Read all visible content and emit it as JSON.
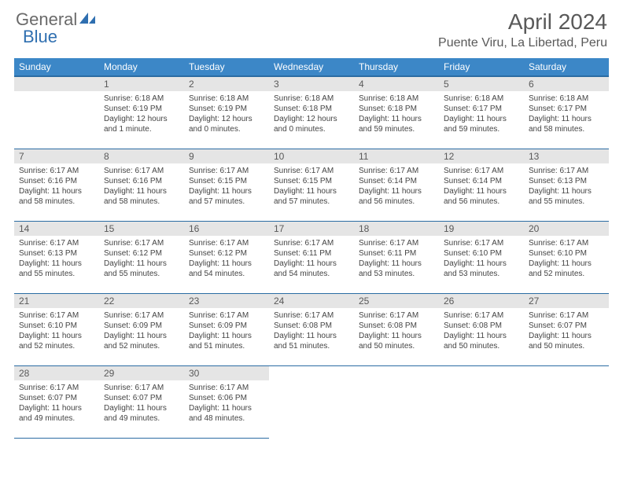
{
  "brand": {
    "general": "General",
    "blue": "Blue"
  },
  "title": "April 2024",
  "location": "Puente Viru, La Libertad, Peru",
  "colors": {
    "header_bg": "#3c87c7",
    "header_border": "#2b6ca3",
    "daynum_bg": "#e5e5e5",
    "text_muted": "#595959",
    "brand_gray": "#6a6a6a",
    "brand_blue": "#2f6fb0",
    "background": "#ffffff"
  },
  "weekdays": [
    "Sunday",
    "Monday",
    "Tuesday",
    "Wednesday",
    "Thursday",
    "Friday",
    "Saturday"
  ],
  "layout": {
    "first_weekday_index": 1,
    "days_in_month": 30,
    "rows": 5,
    "cols": 7
  },
  "days": {
    "1": {
      "sunrise": "Sunrise: 6:18 AM",
      "sunset": "Sunset: 6:19 PM",
      "daylight": "Daylight: 12 hours and 1 minute."
    },
    "2": {
      "sunrise": "Sunrise: 6:18 AM",
      "sunset": "Sunset: 6:19 PM",
      "daylight": "Daylight: 12 hours and 0 minutes."
    },
    "3": {
      "sunrise": "Sunrise: 6:18 AM",
      "sunset": "Sunset: 6:18 PM",
      "daylight": "Daylight: 12 hours and 0 minutes."
    },
    "4": {
      "sunrise": "Sunrise: 6:18 AM",
      "sunset": "Sunset: 6:18 PM",
      "daylight": "Daylight: 11 hours and 59 minutes."
    },
    "5": {
      "sunrise": "Sunrise: 6:18 AM",
      "sunset": "Sunset: 6:17 PM",
      "daylight": "Daylight: 11 hours and 59 minutes."
    },
    "6": {
      "sunrise": "Sunrise: 6:18 AM",
      "sunset": "Sunset: 6:17 PM",
      "daylight": "Daylight: 11 hours and 58 minutes."
    },
    "7": {
      "sunrise": "Sunrise: 6:17 AM",
      "sunset": "Sunset: 6:16 PM",
      "daylight": "Daylight: 11 hours and 58 minutes."
    },
    "8": {
      "sunrise": "Sunrise: 6:17 AM",
      "sunset": "Sunset: 6:16 PM",
      "daylight": "Daylight: 11 hours and 58 minutes."
    },
    "9": {
      "sunrise": "Sunrise: 6:17 AM",
      "sunset": "Sunset: 6:15 PM",
      "daylight": "Daylight: 11 hours and 57 minutes."
    },
    "10": {
      "sunrise": "Sunrise: 6:17 AM",
      "sunset": "Sunset: 6:15 PM",
      "daylight": "Daylight: 11 hours and 57 minutes."
    },
    "11": {
      "sunrise": "Sunrise: 6:17 AM",
      "sunset": "Sunset: 6:14 PM",
      "daylight": "Daylight: 11 hours and 56 minutes."
    },
    "12": {
      "sunrise": "Sunrise: 6:17 AM",
      "sunset": "Sunset: 6:14 PM",
      "daylight": "Daylight: 11 hours and 56 minutes."
    },
    "13": {
      "sunrise": "Sunrise: 6:17 AM",
      "sunset": "Sunset: 6:13 PM",
      "daylight": "Daylight: 11 hours and 55 minutes."
    },
    "14": {
      "sunrise": "Sunrise: 6:17 AM",
      "sunset": "Sunset: 6:13 PM",
      "daylight": "Daylight: 11 hours and 55 minutes."
    },
    "15": {
      "sunrise": "Sunrise: 6:17 AM",
      "sunset": "Sunset: 6:12 PM",
      "daylight": "Daylight: 11 hours and 55 minutes."
    },
    "16": {
      "sunrise": "Sunrise: 6:17 AM",
      "sunset": "Sunset: 6:12 PM",
      "daylight": "Daylight: 11 hours and 54 minutes."
    },
    "17": {
      "sunrise": "Sunrise: 6:17 AM",
      "sunset": "Sunset: 6:11 PM",
      "daylight": "Daylight: 11 hours and 54 minutes."
    },
    "18": {
      "sunrise": "Sunrise: 6:17 AM",
      "sunset": "Sunset: 6:11 PM",
      "daylight": "Daylight: 11 hours and 53 minutes."
    },
    "19": {
      "sunrise": "Sunrise: 6:17 AM",
      "sunset": "Sunset: 6:10 PM",
      "daylight": "Daylight: 11 hours and 53 minutes."
    },
    "20": {
      "sunrise": "Sunrise: 6:17 AM",
      "sunset": "Sunset: 6:10 PM",
      "daylight": "Daylight: 11 hours and 52 minutes."
    },
    "21": {
      "sunrise": "Sunrise: 6:17 AM",
      "sunset": "Sunset: 6:10 PM",
      "daylight": "Daylight: 11 hours and 52 minutes."
    },
    "22": {
      "sunrise": "Sunrise: 6:17 AM",
      "sunset": "Sunset: 6:09 PM",
      "daylight": "Daylight: 11 hours and 52 minutes."
    },
    "23": {
      "sunrise": "Sunrise: 6:17 AM",
      "sunset": "Sunset: 6:09 PM",
      "daylight": "Daylight: 11 hours and 51 minutes."
    },
    "24": {
      "sunrise": "Sunrise: 6:17 AM",
      "sunset": "Sunset: 6:08 PM",
      "daylight": "Daylight: 11 hours and 51 minutes."
    },
    "25": {
      "sunrise": "Sunrise: 6:17 AM",
      "sunset": "Sunset: 6:08 PM",
      "daylight": "Daylight: 11 hours and 50 minutes."
    },
    "26": {
      "sunrise": "Sunrise: 6:17 AM",
      "sunset": "Sunset: 6:08 PM",
      "daylight": "Daylight: 11 hours and 50 minutes."
    },
    "27": {
      "sunrise": "Sunrise: 6:17 AM",
      "sunset": "Sunset: 6:07 PM",
      "daylight": "Daylight: 11 hours and 50 minutes."
    },
    "28": {
      "sunrise": "Sunrise: 6:17 AM",
      "sunset": "Sunset: 6:07 PM",
      "daylight": "Daylight: 11 hours and 49 minutes."
    },
    "29": {
      "sunrise": "Sunrise: 6:17 AM",
      "sunset": "Sunset: 6:07 PM",
      "daylight": "Daylight: 11 hours and 49 minutes."
    },
    "30": {
      "sunrise": "Sunrise: 6:17 AM",
      "sunset": "Sunset: 6:06 PM",
      "daylight": "Daylight: 11 hours and 48 minutes."
    }
  }
}
